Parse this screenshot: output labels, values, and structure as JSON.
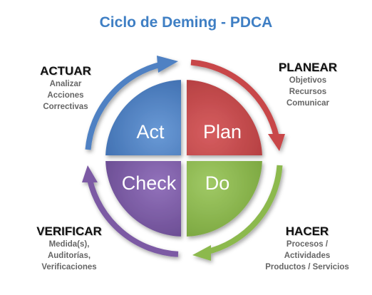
{
  "title": "Ciclo de Deming - PDCA",
  "colors": {
    "title": "#3f7fc4",
    "act": "#4f81c3",
    "plan": "#c8474a",
    "do": "#8cb94d",
    "check": "#7c5aa4"
  },
  "quadrants": {
    "act": "Act",
    "plan": "Plan",
    "check": "Check",
    "do": "Do"
  },
  "phases": {
    "actuar": {
      "name": "ACTUAR",
      "items": [
        "Analizar",
        "Acciones",
        "Correctivas"
      ]
    },
    "planear": {
      "name": "PLANEAR",
      "items": [
        "Objetivos",
        "Recursos",
        "Comunicar"
      ]
    },
    "verificar": {
      "name": "VERIFICAR",
      "items": [
        "Medida(s),",
        "Auditorías,",
        "Verificaciones"
      ]
    },
    "hacer": {
      "name": "HACER",
      "items": [
        "Procesos /",
        "Actividades",
        "Productos / Servicios"
      ]
    }
  }
}
